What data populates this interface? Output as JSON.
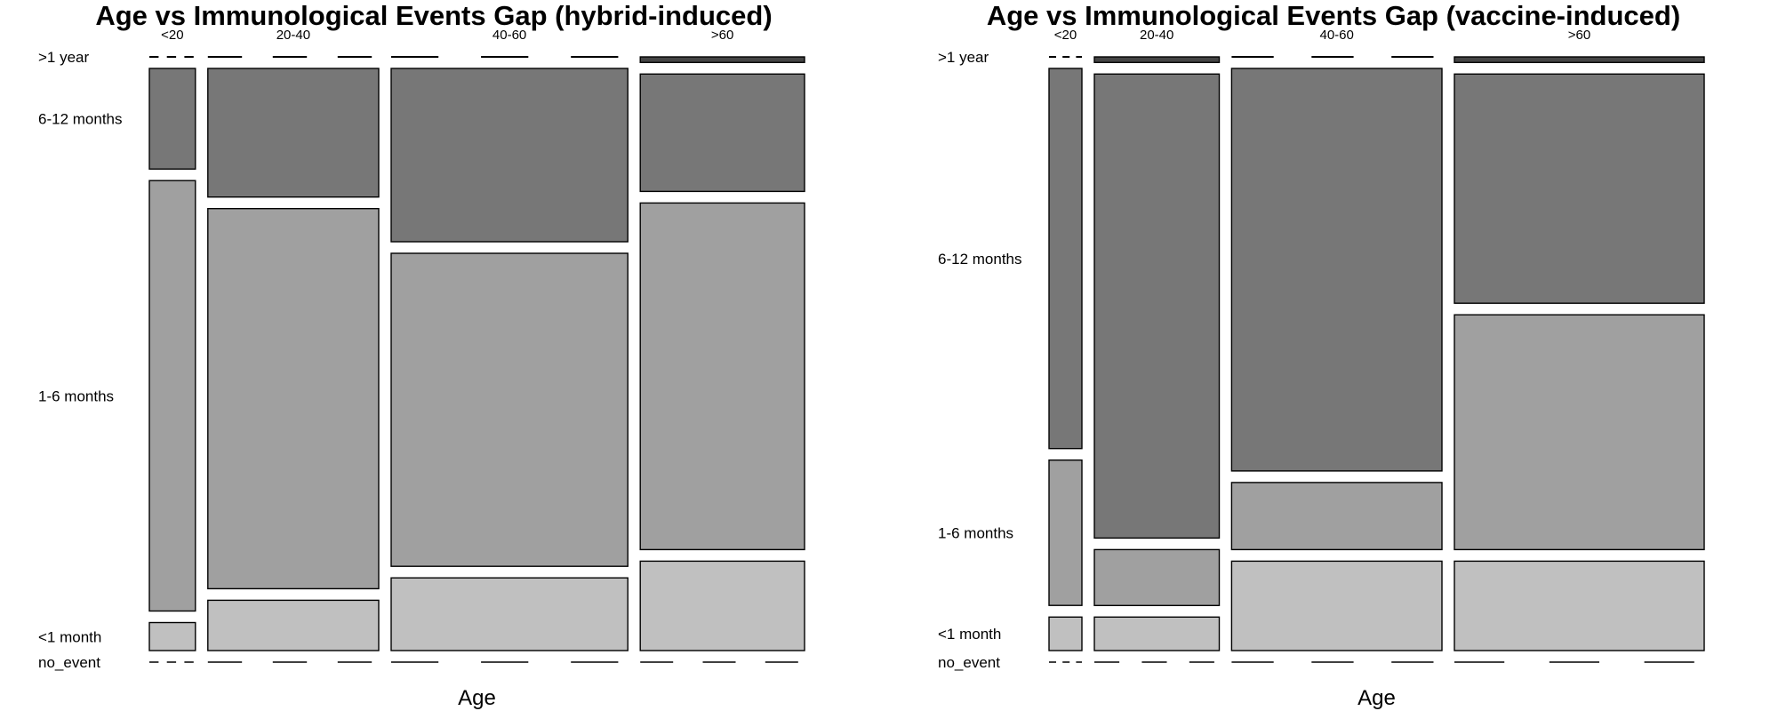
{
  "chart_data": [
    {
      "type": "mosaic",
      "title": "Age vs Immunological Events Gap (hybrid-induced)",
      "xlabel": "Age",
      "x_categories": [
        "<20",
        "20-40",
        "40-60",
        ">60"
      ],
      "y_categories": [
        "no_event",
        "<1 month",
        "1-6 months",
        "6-12 months",
        ">1 year"
      ],
      "column_proportions": [
        0.07,
        0.26,
        0.36,
        0.25
      ],
      "cells": [
        {
          "x": "<20",
          "values": [
            0.0,
            0.05,
            0.77,
            0.18,
            0.0
          ]
        },
        {
          "x": "20-40",
          "values": [
            0.0,
            0.09,
            0.68,
            0.23,
            0.0
          ]
        },
        {
          "x": "40-60",
          "values": [
            0.0,
            0.13,
            0.56,
            0.31,
            0.0
          ]
        },
        {
          "x": ">60",
          "values": [
            0.0,
            0.16,
            0.62,
            0.21,
            0.01
          ]
        }
      ]
    },
    {
      "type": "mosaic",
      "title": "Age vs Immunological Events Gap (vaccine-induced)",
      "xlabel": "Age",
      "x_categories": [
        "<20",
        "20-40",
        "40-60",
        ">60"
      ],
      "y_categories": [
        "no_event",
        "<1 month",
        "1-6 months",
        "6-12 months",
        ">1 year"
      ],
      "column_proportions": [
        0.05,
        0.19,
        0.32,
        0.38
      ],
      "cells": [
        {
          "x": "<20",
          "values": [
            0.0,
            0.06,
            0.26,
            0.68,
            0.0
          ]
        },
        {
          "x": "20-40",
          "values": [
            0.0,
            0.06,
            0.1,
            0.83,
            0.01
          ]
        },
        {
          "x": "40-60",
          "values": [
            0.0,
            0.16,
            0.12,
            0.72,
            0.0
          ]
        },
        {
          "x": ">60",
          "values": [
            0.0,
            0.16,
            0.42,
            0.41,
            0.01
          ]
        }
      ]
    }
  ],
  "colors": {
    "no_event": "#ffffff",
    "<1 month": "#c0c0c0",
    "1-6 months": "#a0a0a0",
    "6-12 months": "#777777",
    ">1 year": "#444444",
    "stroke": "#000000"
  }
}
